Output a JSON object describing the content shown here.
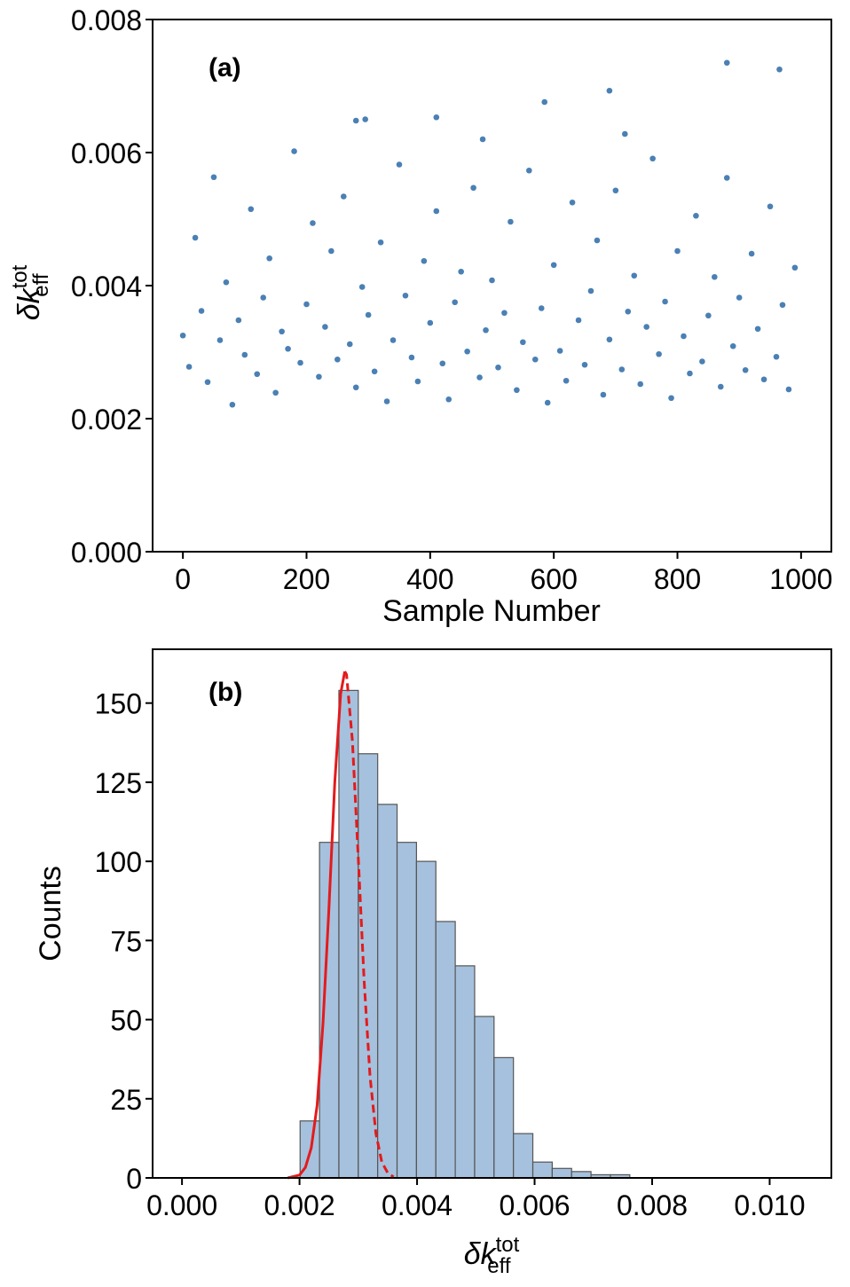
{
  "chart_data": [
    {
      "type": "scatter",
      "panel_label": "(a)",
      "xlabel": "Sample Number",
      "ylabel": {
        "base": "δk",
        "sup": "tot",
        "sub": "eff"
      },
      "color": "#4a80b4",
      "xlim": [
        -49,
        1049
      ],
      "ylim": [
        0,
        0.008
      ],
      "xticks": [
        0,
        200,
        400,
        600,
        800,
        1000
      ],
      "yticks": [
        {
          "value": 0,
          "label": "0.000"
        },
        0.002,
        0.004,
        0.006,
        0.008
      ],
      "x": [
        0,
        10,
        20,
        30,
        40,
        50,
        60,
        70,
        80,
        90,
        100,
        110,
        120,
        130,
        140,
        150,
        160,
        170,
        180,
        190,
        200,
        210,
        220,
        230,
        240,
        250,
        260,
        270,
        280,
        290,
        300,
        310,
        320,
        330,
        340,
        350,
        360,
        370,
        380,
        390,
        400,
        410,
        420,
        430,
        440,
        450,
        460,
        470,
        480,
        490,
        500,
        510,
        520,
        530,
        540,
        550,
        560,
        570,
        580,
        590,
        600,
        610,
        620,
        630,
        640,
        650,
        660,
        670,
        680,
        690,
        700,
        710,
        720,
        730,
        740,
        750,
        760,
        770,
        780,
        790,
        800,
        810,
        820,
        830,
        840,
        850,
        860,
        870,
        880,
        890,
        900,
        910,
        920,
        930,
        940,
        950,
        960,
        970,
        980,
        990,
        880,
        965,
        690,
        585,
        410,
        295,
        280,
        485,
        715
      ],
      "y": [
        0.00325,
        0.00278,
        0.00472,
        0.00362,
        0.00255,
        0.00563,
        0.00318,
        0.00405,
        0.00221,
        0.00348,
        0.00296,
        0.00515,
        0.00267,
        0.00382,
        0.00441,
        0.00239,
        0.00331,
        0.00305,
        0.00602,
        0.00284,
        0.00372,
        0.00494,
        0.00263,
        0.00338,
        0.00452,
        0.00289,
        0.00534,
        0.00312,
        0.00247,
        0.00398,
        0.00356,
        0.00271,
        0.00465,
        0.00226,
        0.00318,
        0.00582,
        0.00385,
        0.00292,
        0.00256,
        0.00437,
        0.00344,
        0.00512,
        0.00283,
        0.00229,
        0.00375,
        0.00421,
        0.00301,
        0.00547,
        0.00262,
        0.00333,
        0.00408,
        0.00277,
        0.00359,
        0.00496,
        0.00243,
        0.00315,
        0.00573,
        0.00289,
        0.00366,
        0.00224,
        0.00431,
        0.00302,
        0.00257,
        0.00525,
        0.00348,
        0.00281,
        0.00392,
        0.00468,
        0.00236,
        0.00319,
        0.00543,
        0.00274,
        0.00361,
        0.00415,
        0.00252,
        0.00338,
        0.00591,
        0.00297,
        0.00376,
        0.00231,
        0.00452,
        0.00324,
        0.00268,
        0.00505,
        0.00286,
        0.00355,
        0.00413,
        0.00248,
        0.00562,
        0.00309,
        0.00382,
        0.00273,
        0.00448,
        0.00335,
        0.00259,
        0.00519,
        0.00293,
        0.00371,
        0.00244,
        0.00427,
        0.00735,
        0.00725,
        0.00693,
        0.00676,
        0.00653,
        0.0065,
        0.00648,
        0.0062,
        0.00628
      ]
    },
    {
      "type": "histogram",
      "panel_label": "(b)",
      "ylabel": "Counts",
      "xlabel": {
        "base": "δk",
        "sup": "tot",
        "sub": "eff"
      },
      "color": "#a6c1dd",
      "edgecolor": "#555555",
      "xlim": [
        -0.0005,
        0.01105
      ],
      "ylim": [
        0,
        167
      ],
      "xticks": [
        {
          "value": 0,
          "label": "0.000"
        },
        0.002,
        0.004,
        0.006,
        0.008,
        {
          "value": 0.01,
          "label": "0.010"
        }
      ],
      "yticks": [
        0,
        25,
        50,
        75,
        100,
        125,
        150
      ],
      "bins": [
        0.00201,
        0.00234,
        0.00267,
        0.003,
        0.00333,
        0.00366,
        0.00399,
        0.00432,
        0.00465,
        0.00498,
        0.00531,
        0.00564,
        0.00597,
        0.0063,
        0.00663,
        0.00696,
        0.00729,
        0.00762
      ],
      "values": [
        18,
        106,
        154,
        134,
        118,
        106,
        100,
        81,
        67,
        51,
        38,
        14,
        5,
        3,
        2,
        1,
        1
      ],
      "fit_curve": {
        "color": "#e41a1c",
        "solid": {
          "x": [
            0.0018,
            0.002,
            0.0021,
            0.0022,
            0.0023,
            0.0024,
            0.0025,
            0.0026,
            0.0027,
            0.00277
          ],
          "y": [
            0,
            0.9,
            3.3,
            9.5,
            23,
            49,
            85,
            125,
            153,
            160
          ]
        },
        "dashed": {
          "x": [
            0.00277,
            0.0028,
            0.0029,
            0.003,
            0.0031,
            0.0032,
            0.0033,
            0.0034,
            0.0035,
            0.0036
          ],
          "y": [
            160,
            159,
            138,
            101,
            62,
            32,
            14,
            5,
            1.6,
            0.3
          ]
        }
      }
    }
  ]
}
